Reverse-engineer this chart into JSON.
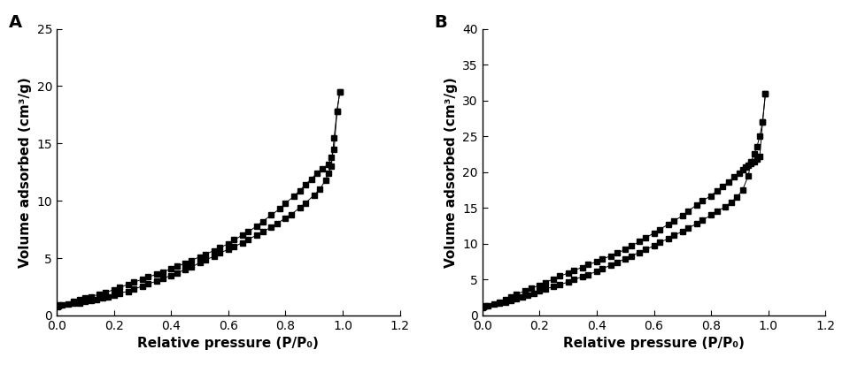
{
  "panel_A": {
    "label": "A",
    "ylabel": "Volume adsorbed (cm³/g)",
    "xlabel": "Relative pressure (P/P₀)",
    "xlim": [
      0.0,
      1.2
    ],
    "ylim": [
      0,
      25
    ],
    "yticks": [
      0,
      5,
      10,
      15,
      20,
      25
    ],
    "xticks": [
      0.0,
      0.2,
      0.4,
      0.6,
      0.8,
      1.0,
      1.2
    ],
    "adsorption_x": [
      0.002,
      0.005,
      0.01,
      0.02,
      0.04,
      0.06,
      0.08,
      0.1,
      0.12,
      0.14,
      0.16,
      0.18,
      0.2,
      0.22,
      0.25,
      0.27,
      0.3,
      0.32,
      0.35,
      0.37,
      0.4,
      0.42,
      0.45,
      0.47,
      0.5,
      0.52,
      0.55,
      0.57,
      0.6,
      0.62,
      0.65,
      0.67,
      0.7,
      0.72,
      0.75,
      0.77,
      0.8,
      0.82,
      0.85,
      0.87,
      0.9,
      0.92,
      0.94,
      0.95,
      0.96,
      0.97,
      0.98,
      0.99
    ],
    "adsorption_y": [
      0.8,
      0.85,
      0.9,
      0.95,
      1.0,
      1.05,
      1.1,
      1.2,
      1.3,
      1.4,
      1.5,
      1.6,
      1.8,
      1.95,
      2.1,
      2.3,
      2.55,
      2.75,
      3.0,
      3.2,
      3.5,
      3.7,
      4.0,
      4.2,
      4.6,
      4.85,
      5.15,
      5.45,
      5.75,
      6.0,
      6.35,
      6.65,
      7.0,
      7.3,
      7.7,
      8.0,
      8.5,
      8.8,
      9.4,
      9.8,
      10.5,
      11.0,
      11.8,
      12.4,
      13.0,
      15.5,
      17.8,
      19.5
    ],
    "desorption_x": [
      0.99,
      0.98,
      0.97,
      0.96,
      0.95,
      0.93,
      0.91,
      0.89,
      0.87,
      0.85,
      0.83,
      0.8,
      0.78,
      0.75,
      0.72,
      0.7,
      0.67,
      0.65,
      0.62,
      0.6,
      0.57,
      0.55,
      0.52,
      0.5,
      0.47,
      0.45,
      0.42,
      0.4,
      0.37,
      0.35,
      0.32,
      0.3,
      0.27,
      0.25,
      0.22,
      0.2,
      0.17,
      0.15,
      0.12,
      0.1,
      0.08,
      0.06
    ],
    "desorption_y": [
      19.5,
      17.8,
      14.5,
      13.8,
      13.2,
      12.8,
      12.4,
      11.9,
      11.4,
      10.9,
      10.4,
      9.8,
      9.3,
      8.75,
      8.2,
      7.8,
      7.3,
      7.0,
      6.6,
      6.25,
      5.9,
      5.65,
      5.35,
      5.1,
      4.8,
      4.55,
      4.3,
      4.05,
      3.8,
      3.6,
      3.35,
      3.15,
      2.9,
      2.7,
      2.45,
      2.25,
      2.0,
      1.85,
      1.65,
      1.5,
      1.35,
      1.2
    ]
  },
  "panel_B": {
    "label": "B",
    "ylabel": "Volume adsorbed (cm³/g)",
    "xlabel": "Relative pressure (P/P₀)",
    "xlim": [
      0.0,
      1.2
    ],
    "ylim": [
      0,
      40
    ],
    "yticks": [
      0,
      5,
      10,
      15,
      20,
      25,
      30,
      35,
      40
    ],
    "xticks": [
      0.0,
      0.2,
      0.4,
      0.6,
      0.8,
      1.0,
      1.2
    ],
    "adsorption_x": [
      0.002,
      0.005,
      0.01,
      0.02,
      0.04,
      0.06,
      0.08,
      0.1,
      0.12,
      0.14,
      0.16,
      0.18,
      0.2,
      0.22,
      0.25,
      0.27,
      0.3,
      0.32,
      0.35,
      0.37,
      0.4,
      0.42,
      0.45,
      0.47,
      0.5,
      0.52,
      0.55,
      0.57,
      0.6,
      0.62,
      0.65,
      0.67,
      0.7,
      0.72,
      0.75,
      0.77,
      0.8,
      0.82,
      0.85,
      0.87,
      0.89,
      0.91,
      0.93,
      0.94,
      0.95,
      0.96,
      0.97,
      0.98,
      0.99
    ],
    "adsorption_y": [
      1.1,
      1.2,
      1.3,
      1.4,
      1.55,
      1.7,
      1.9,
      2.1,
      2.35,
      2.6,
      2.85,
      3.1,
      3.4,
      3.7,
      4.0,
      4.3,
      4.65,
      5.0,
      5.4,
      5.7,
      6.15,
      6.55,
      7.0,
      7.4,
      7.9,
      8.3,
      8.8,
      9.2,
      9.7,
      10.2,
      10.7,
      11.2,
      11.7,
      12.2,
      12.8,
      13.3,
      14.0,
      14.5,
      15.2,
      15.8,
      16.5,
      17.5,
      19.5,
      21.5,
      22.5,
      23.5,
      25.0,
      27.0,
      31.0
    ],
    "desorption_x": [
      0.99,
      0.98,
      0.97,
      0.96,
      0.95,
      0.94,
      0.93,
      0.92,
      0.91,
      0.9,
      0.88,
      0.86,
      0.84,
      0.82,
      0.8,
      0.77,
      0.75,
      0.72,
      0.7,
      0.67,
      0.65,
      0.62,
      0.6,
      0.57,
      0.55,
      0.52,
      0.5,
      0.47,
      0.45,
      0.42,
      0.4,
      0.37,
      0.35,
      0.32,
      0.3,
      0.27,
      0.25,
      0.22,
      0.2,
      0.17,
      0.15,
      0.12,
      0.1,
      0.08,
      0.06
    ],
    "desorption_y": [
      31.0,
      27.0,
      22.2,
      21.8,
      21.5,
      21.2,
      21.0,
      20.7,
      20.3,
      19.9,
      19.3,
      18.6,
      18.0,
      17.4,
      16.7,
      16.0,
      15.4,
      14.6,
      13.9,
      13.2,
      12.7,
      12.0,
      11.5,
      10.8,
      10.3,
      9.7,
      9.2,
      8.7,
      8.3,
      7.9,
      7.5,
      7.1,
      6.7,
      6.3,
      5.9,
      5.5,
      5.1,
      4.6,
      4.2,
      3.8,
      3.4,
      3.0,
      2.6,
      2.2,
      1.9
    ]
  },
  "line_color": "#000000",
  "marker": "s",
  "markersize": 4.5,
  "linewidth": 0.7,
  "background_color": "#ffffff",
  "label_fontsize": 11,
  "tick_fontsize": 10,
  "panel_label_fontsize": 14
}
